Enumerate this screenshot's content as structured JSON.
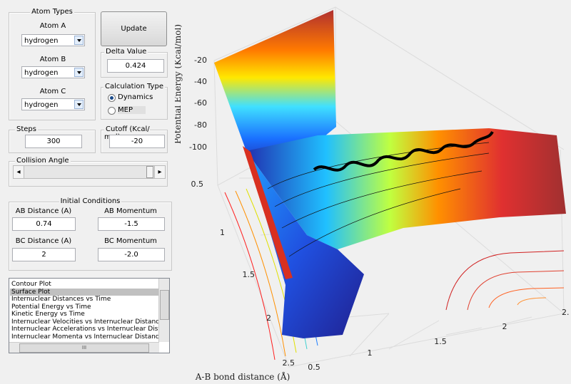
{
  "atom_types": {
    "title": "Atom Types",
    "atoms": [
      {
        "label": "Atom A",
        "value": "hydrogen"
      },
      {
        "label": "Atom B",
        "value": "hydrogen"
      },
      {
        "label": "Atom C",
        "value": "hydrogen"
      }
    ]
  },
  "update_button": "Update",
  "delta_value": {
    "label": "Delta Value",
    "value": "0.424"
  },
  "calculation_type": {
    "title": "Calculation Type",
    "options": [
      "Dynamics",
      "MEP"
    ],
    "selected": 0
  },
  "steps": {
    "label": "Steps",
    "value": "300"
  },
  "cutoff": {
    "label": "Cutoff (Kcal/ mol)",
    "value": "-20"
  },
  "collision_angle": {
    "label": "Collision Angle"
  },
  "initial_conditions": {
    "title": "Initial Conditions",
    "fields": [
      {
        "label": "AB Distance (A)",
        "value": "0.74"
      },
      {
        "label": "AB Momentum",
        "value": "-1.5"
      },
      {
        "label": "BC Distance (A)",
        "value": "2"
      },
      {
        "label": "BC Momentum",
        "value": "-2.0"
      }
    ]
  },
  "plot_list": {
    "items": [
      "Contour Plot",
      "Surface Plot",
      "Internuclear Distances vs Time",
      "Potential Energy vs Time",
      "Kinetic Energy vs Time",
      "Internuclear Velocities vs Internuclear Distance",
      "Internuclear Accelerations vs Internuclear Dista",
      "Internuclear Momenta vs Internuclear Distance"
    ],
    "selected": 1,
    "h_scroll_grip": "III"
  },
  "plot": {
    "z_label": "Potential Energy (Kcal/mol)",
    "x_label": "A-B bond distance (Å)",
    "z_ticks": [
      "-20",
      "-40",
      "-60",
      "-80",
      "-100"
    ],
    "ab_ticks": [
      "0.5",
      "1",
      "1.5",
      "2",
      "2.5"
    ],
    "bc_ticks": [
      "0.5",
      "1",
      "1.5",
      "2",
      "2."
    ]
  }
}
